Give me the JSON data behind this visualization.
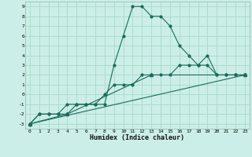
{
  "title": "",
  "xlabel": "Humidex (Indice chaleur)",
  "ylabel": "",
  "background_color": "#cceee8",
  "grid_color": "#aaddcc",
  "line_color": "#1a6b5a",
  "xlim": [
    -0.5,
    23.5
  ],
  "ylim": [
    -3.5,
    9.5
  ],
  "xticks": [
    0,
    1,
    2,
    3,
    4,
    5,
    6,
    7,
    8,
    9,
    10,
    11,
    12,
    13,
    14,
    15,
    16,
    17,
    18,
    19,
    20,
    21,
    22,
    23
  ],
  "yticks": [
    -3,
    -2,
    -1,
    0,
    1,
    2,
    3,
    4,
    5,
    6,
    7,
    8,
    9
  ],
  "series": [
    {
      "x": [
        0,
        1,
        2,
        3,
        4,
        5,
        6,
        7,
        8,
        9,
        10,
        11,
        12,
        13,
        14,
        15,
        16,
        17,
        18,
        19,
        20,
        21,
        22,
        23
      ],
      "y": [
        -3,
        -2,
        -2,
        -2,
        -2,
        -1,
        -1,
        -1,
        -1,
        3,
        6,
        9,
        9,
        8,
        8,
        7,
        5,
        4,
        3,
        3,
        2,
        2,
        2,
        2
      ],
      "marker": "o"
    },
    {
      "x": [
        0,
        1,
        2,
        3,
        4,
        5,
        6,
        7,
        8,
        9,
        10,
        11,
        12,
        13,
        14,
        15,
        16,
        17,
        18,
        19,
        20,
        21,
        22,
        23
      ],
      "y": [
        -3,
        -2,
        -2,
        -2,
        -1,
        -1,
        -1,
        -1,
        0,
        1,
        1,
        1,
        2,
        2,
        2,
        2,
        3,
        3,
        3,
        4,
        2,
        2,
        2,
        2
      ],
      "marker": "o"
    },
    {
      "x": [
        0,
        4,
        13,
        23
      ],
      "y": [
        -3,
        -2,
        2,
        2
      ],
      "marker": "^"
    },
    {
      "x": [
        0,
        23
      ],
      "y": [
        -3,
        2
      ],
      "marker": null
    }
  ]
}
